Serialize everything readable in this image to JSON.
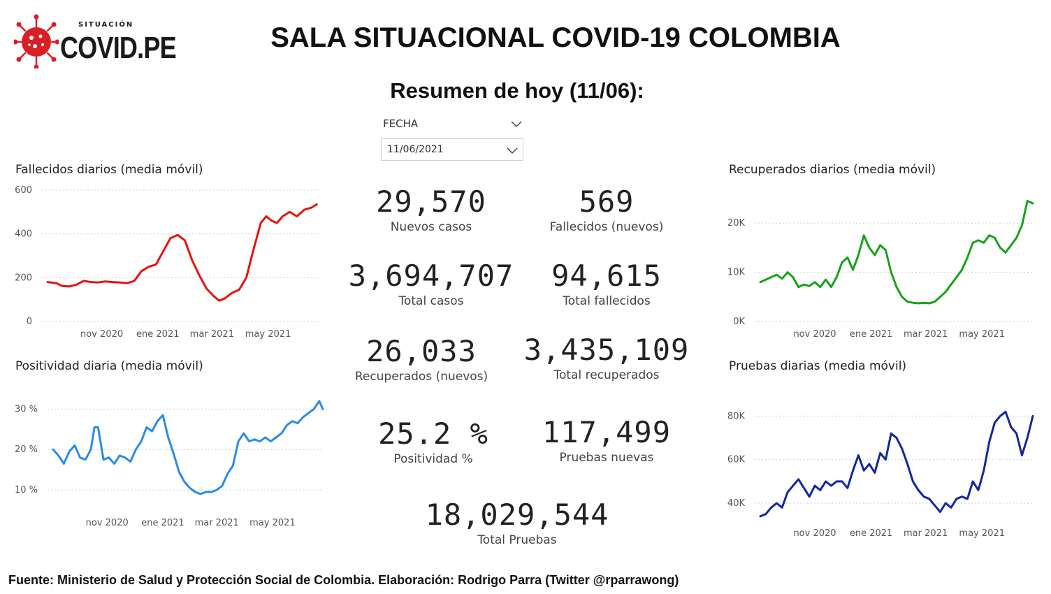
{
  "logo": {
    "sub": "SITUACIÓN",
    "brand": "COVID.PE"
  },
  "header": {
    "title": "SALA SITUACIONAL COVID-19 COLOMBIA"
  },
  "summary": {
    "title": "Resumen de hoy (11/06):"
  },
  "slicer": {
    "label": "FECHA",
    "value": "11/06/2021"
  },
  "kpis": [
    {
      "value": "29,570",
      "label": "Nuevos casos"
    },
    {
      "value": "569",
      "label": "Fallecidos (nuevos)"
    },
    {
      "value": "3,694,707",
      "label": "Total casos"
    },
    {
      "value": "94,615",
      "label": "Total fallecidos"
    },
    {
      "value": "26,033",
      "label": "Recuperados (nuevos)"
    },
    {
      "value": "3,435,109",
      "label": "Total recuperados"
    },
    {
      "value": "25.2 %",
      "label": "Positividad %"
    },
    {
      "value": "117,499",
      "label": "Pruebas nuevas"
    },
    {
      "value": "18,029,544",
      "label": "Total Pruebas"
    }
  ],
  "footer": "Fuente: Ministerio de Salud y Protección Social de Colombia. Elaboración: Rodrigo Parra (Twitter @rparrawong)",
  "chart_data": [
    {
      "id": "fallecidos",
      "type": "line",
      "title": "Fallecidos diarios (media móvil)",
      "color": "#e8120c",
      "xticks": [
        "nov 2020",
        "ene 2021",
        "mar 2021",
        "may 2021"
      ],
      "xtick_pos": [
        30,
        61,
        91,
        122
      ],
      "yticks": [
        "0",
        "200",
        "400",
        "600"
      ],
      "ytick_vals": [
        0,
        200,
        400,
        600
      ],
      "ylim": [
        0,
        600
      ],
      "xlim": [
        0,
        150
      ],
      "x": [
        0,
        5,
        8,
        12,
        16,
        20,
        24,
        28,
        32,
        36,
        40,
        44,
        48,
        52,
        56,
        60,
        64,
        68,
        72,
        76,
        80,
        84,
        88,
        92,
        95,
        98,
        102,
        106,
        110,
        114,
        118,
        121,
        124,
        127,
        130,
        134,
        138,
        142,
        146,
        149
      ],
      "y": [
        180,
        175,
        162,
        160,
        168,
        185,
        180,
        178,
        183,
        180,
        178,
        175,
        185,
        230,
        250,
        260,
        320,
        380,
        395,
        370,
        280,
        210,
        150,
        115,
        95,
        105,
        130,
        145,
        200,
        330,
        450,
        480,
        460,
        450,
        480,
        500,
        480,
        510,
        520,
        535
      ]
    },
    {
      "id": "positividad",
      "type": "line",
      "title": "Positividad diaria (media móvil)",
      "color": "#2b8be3",
      "xticks": [
        "nov 2020",
        "ene 2021",
        "mar 2021",
        "may 2021"
      ],
      "xtick_pos": [
        30,
        61,
        91,
        122
      ],
      "yticks": [
        "10 %",
        "20 %",
        "30 %"
      ],
      "ytick_vals": [
        10,
        20,
        30
      ],
      "ylim": [
        5,
        33
      ],
      "xlim": [
        0,
        150
      ],
      "x": [
        0,
        3,
        6,
        9,
        12,
        15,
        18,
        21,
        23,
        25,
        28,
        31,
        34,
        37,
        40,
        43,
        46,
        49,
        52,
        55,
        58,
        61,
        64,
        67,
        70,
        73,
        76,
        79,
        82,
        85,
        88,
        91,
        94,
        97,
        100,
        103,
        106,
        109,
        112,
        115,
        118,
        121,
        124,
        127,
        130,
        133,
        136,
        139,
        142,
        145,
        148,
        150
      ],
      "y": [
        20,
        18.5,
        16.5,
        19.5,
        21,
        18,
        17.5,
        20,
        25.5,
        25.5,
        17.5,
        18,
        16.5,
        18.5,
        18,
        17,
        20,
        22,
        25.5,
        24.5,
        27,
        28.5,
        23,
        19,
        14.5,
        12,
        10.5,
        9.5,
        9,
        9.5,
        9.5,
        10,
        11,
        14,
        16,
        22,
        24,
        22,
        22.5,
        22,
        23,
        22,
        23,
        24,
        26,
        27,
        26.5,
        28,
        29,
        30,
        32,
        30
      ]
    },
    {
      "id": "recuperados",
      "type": "line",
      "title": "Recuperados diarios (media móvil)",
      "color": "#19a11b",
      "xticks": [
        "nov 2020",
        "ene 2021",
        "mar 2021",
        "may 2021"
      ],
      "xtick_pos": [
        30,
        61,
        91,
        122
      ],
      "yticks": [
        "0K",
        "10K",
        "20K"
      ],
      "ytick_vals": [
        0,
        10000,
        20000
      ],
      "ylim": [
        0,
        25000
      ],
      "xlim": [
        0,
        150
      ],
      "x": [
        0,
        3,
        6,
        9,
        12,
        15,
        18,
        21,
        24,
        27,
        30,
        33,
        36,
        39,
        42,
        45,
        48,
        51,
        54,
        57,
        60,
        63,
        66,
        69,
        72,
        75,
        78,
        81,
        84,
        87,
        90,
        93,
        96,
        99,
        102,
        105,
        108,
        111,
        114,
        117,
        120,
        123,
        126,
        129,
        132,
        135,
        138,
        141,
        144,
        147,
        150
      ],
      "y": [
        8000,
        8500,
        9000,
        9500,
        8700,
        10000,
        9000,
        7000,
        7500,
        7200,
        8000,
        7000,
        8500,
        7000,
        9000,
        12000,
        13000,
        10500,
        13500,
        17500,
        15000,
        13500,
        15500,
        14500,
        10000,
        7000,
        5000,
        4000,
        3800,
        3700,
        3800,
        3700,
        4000,
        5000,
        6000,
        7500,
        9000,
        10500,
        13000,
        16000,
        16500,
        16000,
        17500,
        17000,
        15000,
        14000,
        15500,
        17000,
        19500,
        24500,
        24000
      ]
    },
    {
      "id": "pruebas",
      "type": "line",
      "title": "Pruebas diarias (media móvil)",
      "color": "#14279b",
      "xticks": [
        "nov 2020",
        "ene 2021",
        "mar 2021",
        "may 2021"
      ],
      "xtick_pos": [
        30,
        61,
        91,
        122
      ],
      "yticks": [
        "40K",
        "60K",
        "80K"
      ],
      "ytick_vals": [
        40000,
        60000,
        80000
      ],
      "ylim": [
        32000,
        92000
      ],
      "xlim": [
        0,
        150
      ],
      "x": [
        0,
        3,
        6,
        9,
        12,
        15,
        18,
        21,
        24,
        27,
        30,
        33,
        36,
        39,
        42,
        45,
        48,
        51,
        54,
        57,
        60,
        63,
        66,
        69,
        72,
        75,
        78,
        81,
        84,
        87,
        90,
        93,
        96,
        99,
        102,
        105,
        108,
        111,
        114,
        117,
        120,
        123,
        126,
        129,
        132,
        135,
        138,
        141,
        144,
        147,
        150
      ],
      "y": [
        34000,
        35000,
        38000,
        40000,
        38000,
        45000,
        48000,
        51000,
        47000,
        43000,
        48000,
        46000,
        50000,
        48000,
        50000,
        50000,
        47000,
        55000,
        62000,
        55000,
        58000,
        54000,
        63000,
        60000,
        72000,
        70000,
        65000,
        58000,
        50000,
        46000,
        43000,
        42000,
        39000,
        36000,
        40000,
        38000,
        42000,
        43000,
        42000,
        50000,
        46000,
        55000,
        68000,
        77000,
        80000,
        82000,
        75000,
        72000,
        62000,
        70000,
        80000
      ]
    }
  ]
}
